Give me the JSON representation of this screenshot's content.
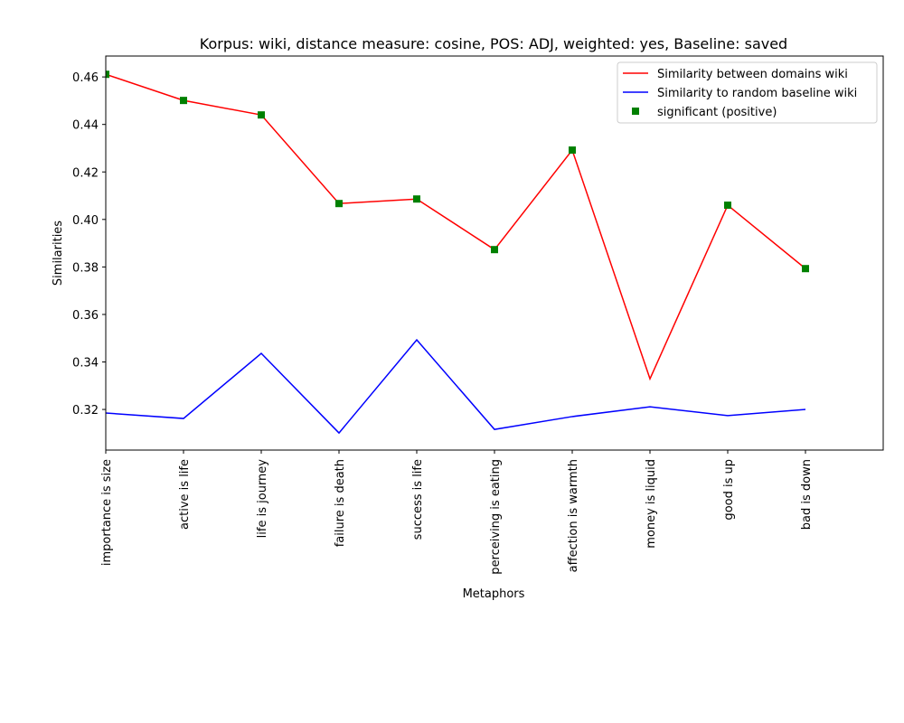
{
  "chart_data": {
    "type": "line",
    "title": "Korpus: wiki, distance measure: cosine, POS: ADJ, weighted: yes, Baseline: saved",
    "xlabel": "Metaphors",
    "ylabel": "Similarities",
    "categories": [
      "importance is size",
      "active is life",
      "life is journey",
      "failure is death",
      "success is life",
      "perceiving is eating",
      "affection is warmth",
      "money is liquid",
      "good is up",
      "bad is down"
    ],
    "series": [
      {
        "name": "Similarity between domains wiki",
        "color": "#ff0000",
        "style": "line",
        "values": [
          0.4611,
          0.4501,
          0.444,
          0.4067,
          0.4086,
          0.3873,
          0.4292,
          0.3329,
          0.406,
          0.3793
        ]
      },
      {
        "name": "Similarity to random baseline wiki",
        "color": "#0000ff",
        "style": "line",
        "values": [
          0.3185,
          0.3162,
          0.3436,
          0.3101,
          0.3493,
          0.3116,
          0.317,
          0.3211,
          0.3174,
          0.32
        ]
      },
      {
        "name": "significant (positive)",
        "color": "#008000",
        "style": "markers",
        "values": [
          0.4611,
          0.4501,
          0.444,
          0.4067,
          0.4086,
          0.3873,
          0.4292,
          null,
          0.406,
          0.3793
        ]
      }
    ],
    "ylim": [
      0.3029,
      0.4688
    ],
    "yticks": [
      0.32,
      0.34,
      0.36,
      0.38,
      {
        "value": 0.4,
        "label": "0.40"
      },
      0.42,
      0.44,
      0.46
    ],
    "legend": "upper right",
    "grid": false
  }
}
